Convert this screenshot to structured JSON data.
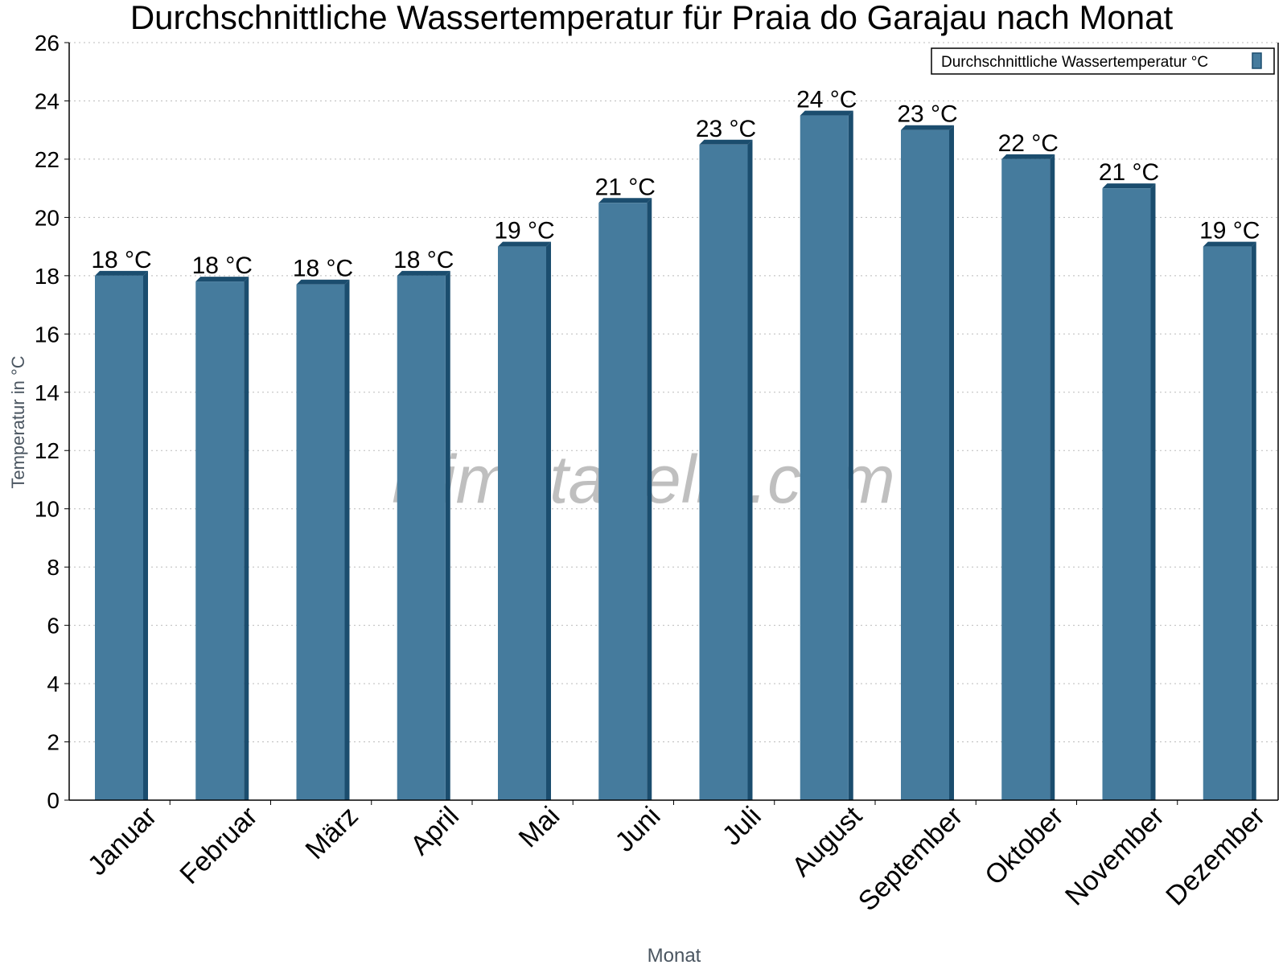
{
  "chart_data": {
    "type": "bar",
    "title": "Durchschnittliche Wassertemperatur für Praia do Garajau nach Monat",
    "xlabel": "Monat",
    "ylabel": "Temperatur in °C",
    "ylim": [
      0,
      26
    ],
    "yticks": [
      0,
      2,
      4,
      6,
      8,
      10,
      12,
      14,
      16,
      18,
      20,
      22,
      24,
      26
    ],
    "grid": true,
    "legend_position": "top-right",
    "categories": [
      "Januar",
      "Februar",
      "März",
      "April",
      "Mai",
      "Juni",
      "Juli",
      "August",
      "September",
      "Oktober",
      "November",
      "Dezember"
    ],
    "series": [
      {
        "name": "Durchschnittliche Wassertemperatur °C",
        "color": "#457b9d",
        "side_color": "#1b4d6e",
        "values": [
          18,
          17.8,
          17.7,
          18,
          19,
          20.5,
          22.5,
          23.5,
          23,
          22,
          21,
          19
        ],
        "data_labels": [
          "18 °C",
          "18 °C",
          "18 °C",
          "18 °C",
          "19 °C",
          "21 °C",
          "23 °C",
          "24 °C",
          "23 °C",
          "22 °C",
          "21 °C",
          "19 °C"
        ]
      }
    ],
    "watermark": "klimatabelle.com"
  }
}
